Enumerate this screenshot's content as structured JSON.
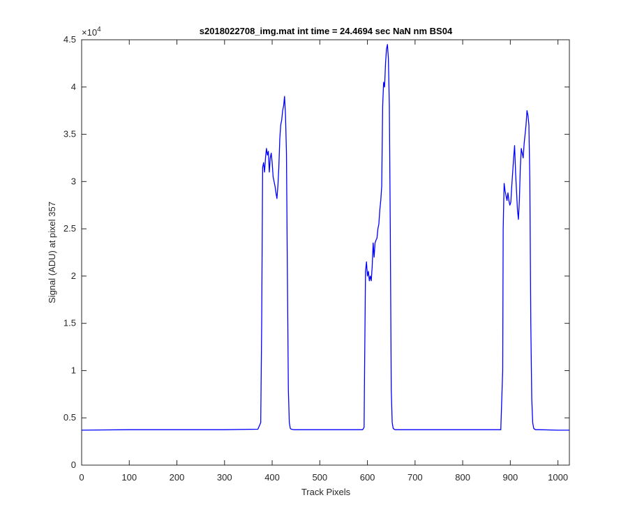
{
  "chart_data": {
    "type": "line",
    "title": "s2018022708_img.mat int time = 24.4694 sec  NaN nm BS04",
    "xlabel": "Track Pixels",
    "ylabel": "Signal (ADU) at pixel 357",
    "exponent_label": "×10",
    "exponent_power": "4",
    "xlim": [
      0,
      1024
    ],
    "ylim": [
      0,
      45000
    ],
    "xticks": [
      0,
      100,
      200,
      300,
      400,
      500,
      600,
      700,
      800,
      900,
      1000
    ],
    "xtick_labels": [
      "0",
      "100",
      "200",
      "300",
      "400",
      "500",
      "600",
      "700",
      "800",
      "900",
      "1000"
    ],
    "yticks": [
      0,
      5000,
      10000,
      15000,
      20000,
      25000,
      30000,
      35000,
      40000,
      45000
    ],
    "ytick_labels": [
      "0",
      "0.5",
      "1",
      "1.5",
      "2",
      "2.5",
      "3",
      "3.5",
      "4",
      "4.5"
    ],
    "grid": false,
    "line_color": "#0000ff",
    "series": [
      {
        "x": [
          0,
          100,
          200,
          300,
          370,
          376,
          378,
          380,
          382,
          384,
          386,
          388,
          390,
          392,
          394,
          396,
          398,
          400,
          402,
          404,
          406,
          408,
          410,
          412,
          414,
          416,
          418,
          420,
          422,
          424,
          426,
          428,
          430,
          432,
          434,
          436,
          438,
          440,
          445,
          500,
          590,
          593,
          594,
          596,
          598,
          600,
          602,
          604,
          606,
          608,
          610,
          612,
          614,
          616,
          618,
          620,
          622,
          624,
          626,
          628,
          630,
          632,
          634,
          636,
          638,
          640,
          642,
          644,
          646,
          648,
          650,
          652,
          654,
          656,
          658,
          662,
          700,
          800,
          880,
          884,
          885,
          887,
          889,
          891,
          893,
          895,
          897,
          899,
          901,
          903,
          905,
          907,
          909,
          911,
          913,
          915,
          917,
          919,
          921,
          923,
          925,
          927,
          929,
          931,
          933,
          935,
          937,
          939,
          941,
          943,
          945,
          947,
          949,
          951,
          953,
          956,
          960,
          1000,
          1024
        ],
        "y": [
          3700,
          3750,
          3750,
          3750,
          3800,
          4500,
          15000,
          31500,
          32000,
          31000,
          32500,
          33500,
          32800,
          33200,
          31000,
          32500,
          33000,
          32000,
          30500,
          30000,
          29500,
          28800,
          28200,
          29500,
          31500,
          34500,
          36000,
          36500,
          37500,
          38000,
          39000,
          37000,
          33000,
          20000,
          8000,
          4500,
          3900,
          3800,
          3750,
          3750,
          3750,
          4000,
          10000,
          20500,
          21500,
          20000,
          20500,
          19500,
          20000,
          19500,
          21000,
          23500,
          22000,
          23500,
          23800,
          24000,
          25000,
          25500,
          27000,
          28000,
          29500,
          38000,
          40500,
          40000,
          42500,
          44000,
          44500,
          43000,
          38000,
          25000,
          8000,
          4500,
          3900,
          3800,
          3750,
          3750,
          3750,
          3750,
          3750,
          10000,
          25000,
          29800,
          29000,
          28500,
          28000,
          28800,
          28000,
          27500,
          27800,
          29500,
          31000,
          32500,
          33800,
          31000,
          29000,
          27000,
          26000,
          28000,
          31500,
          33500,
          33000,
          32500,
          34000,
          35000,
          36000,
          37500,
          37000,
          36000,
          30000,
          15000,
          7000,
          4500,
          3900,
          3800,
          3750,
          3750,
          3750,
          3700,
          3700
        ]
      }
    ]
  }
}
